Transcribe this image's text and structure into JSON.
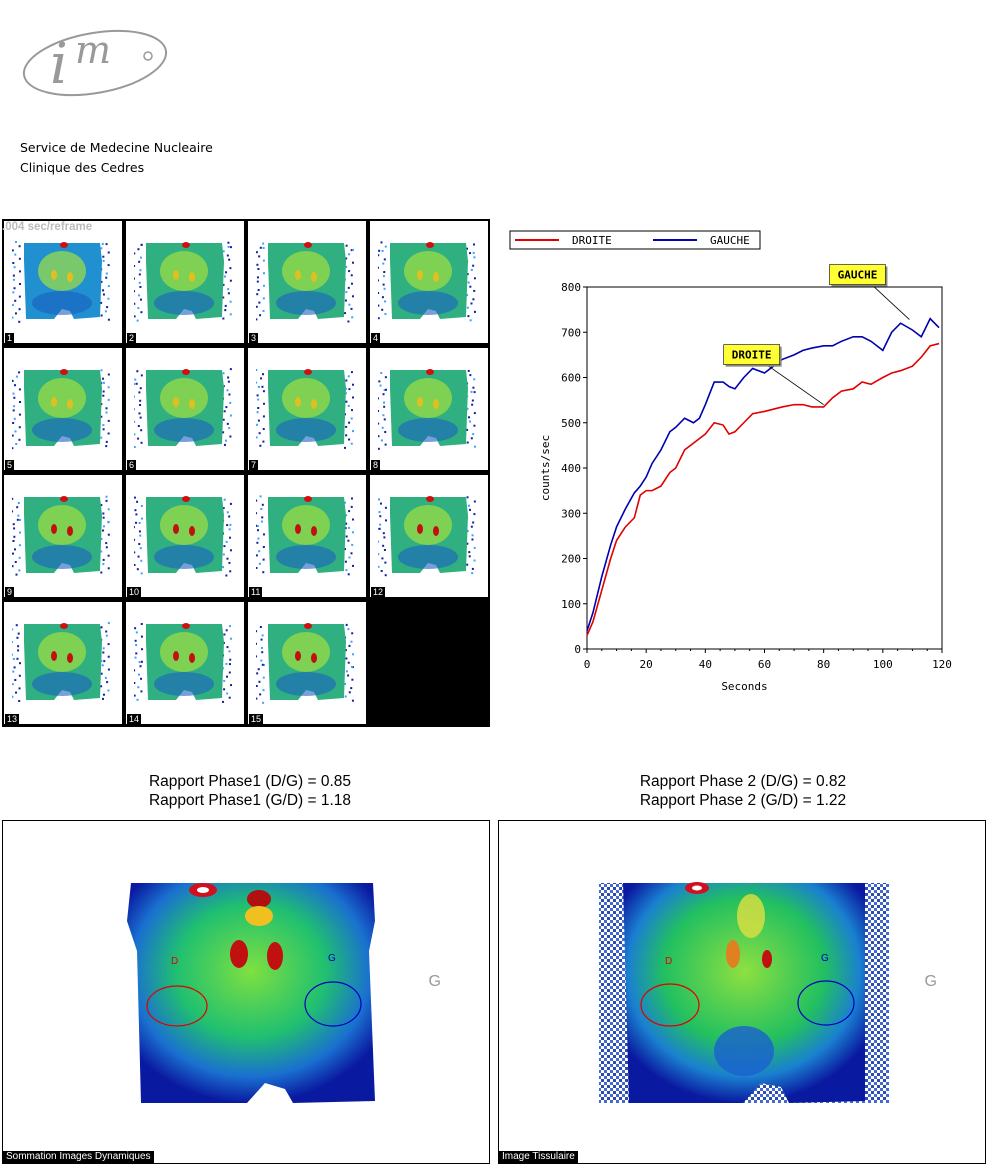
{
  "header": {
    "line1": "Service de Medecine Nucleaire",
    "line2": "Clinique des Cedres"
  },
  "logo": {
    "icon": "im-logo-icon",
    "text": "im"
  },
  "dynamic": {
    "timing": ".004 sec/reframe",
    "frames": [
      "1",
      "2",
      "3",
      "4",
      "5",
      "6",
      "7",
      "8",
      "9",
      "10",
      "11",
      "12",
      "13",
      "14",
      "15"
    ]
  },
  "chart_data": {
    "type": "line",
    "xlabel": "Seconds",
    "ylabel": "counts/sec",
    "xlim": [
      0,
      120
    ],
    "ylim": [
      0,
      800
    ],
    "x_ticks": [
      0,
      20,
      40,
      60,
      80,
      100,
      120
    ],
    "y_ticks": [
      0,
      100,
      200,
      300,
      400,
      500,
      600,
      700,
      800
    ],
    "legend_placement": "top",
    "series": [
      {
        "name": "DROITE",
        "color": "#e00000",
        "x": [
          0,
          2,
          5,
          8,
          10,
          13,
          16,
          18,
          20,
          22,
          25,
          28,
          30,
          33,
          36,
          40,
          43,
          46,
          48,
          50,
          53,
          56,
          60,
          63,
          66,
          70,
          73,
          76,
          80,
          83,
          86,
          90,
          93,
          96,
          100,
          103,
          106,
          110,
          113,
          116,
          119
        ],
        "y": [
          30,
          60,
          130,
          200,
          240,
          270,
          290,
          340,
          350,
          350,
          360,
          390,
          400,
          440,
          455,
          475,
          500,
          495,
          475,
          480,
          500,
          520,
          525,
          530,
          535,
          540,
          540,
          535,
          535,
          555,
          570,
          575,
          590,
          585,
          600,
          610,
          615,
          625,
          645,
          670,
          675
        ]
      },
      {
        "name": "GAUCHE",
        "color": "#0000b0",
        "x": [
          0,
          2,
          5,
          8,
          10,
          13,
          16,
          18,
          20,
          22,
          25,
          28,
          30,
          33,
          36,
          38,
          40,
          43,
          46,
          48,
          50,
          53,
          56,
          58,
          60,
          63,
          66,
          70,
          73,
          76,
          80,
          83,
          86,
          90,
          93,
          96,
          100,
          103,
          106,
          110,
          113,
          116,
          119
        ],
        "y": [
          40,
          80,
          160,
          230,
          270,
          310,
          345,
          360,
          380,
          410,
          440,
          480,
          490,
          510,
          500,
          510,
          540,
          590,
          590,
          580,
          575,
          600,
          620,
          615,
          610,
          625,
          640,
          650,
          660,
          665,
          670,
          670,
          680,
          690,
          690,
          680,
          660,
          700,
          720,
          705,
          690,
          730,
          710
        ]
      }
    ],
    "annotations": [
      {
        "text": "GAUCHE",
        "x": 109,
        "y": 728
      },
      {
        "text": "DROITE",
        "x": 80,
        "y": 540
      }
    ]
  },
  "ratios": {
    "phase1_dg": "Rapport Phase1 (D/G) = 0.85",
    "phase1_gd": "Rapport Phase1 (G/D) = 1.18",
    "phase2_dg": "Rapport Phase 2 (D/G) = 0.82",
    "phase2_gd": "Rapport Phase 2 (G/D) = 1.22"
  },
  "panels": {
    "left": {
      "caption": "Sommation Images Dynamiques",
      "label_d": "D",
      "label_g": "G",
      "side_label": "G"
    },
    "right": {
      "caption": "Image Tissulaire",
      "label_d": "D",
      "label_g": "G",
      "side_label": "G"
    }
  },
  "colors": {
    "droite": "#e00000",
    "gauche": "#0000b0",
    "annotation_bg": "#ffff33"
  }
}
